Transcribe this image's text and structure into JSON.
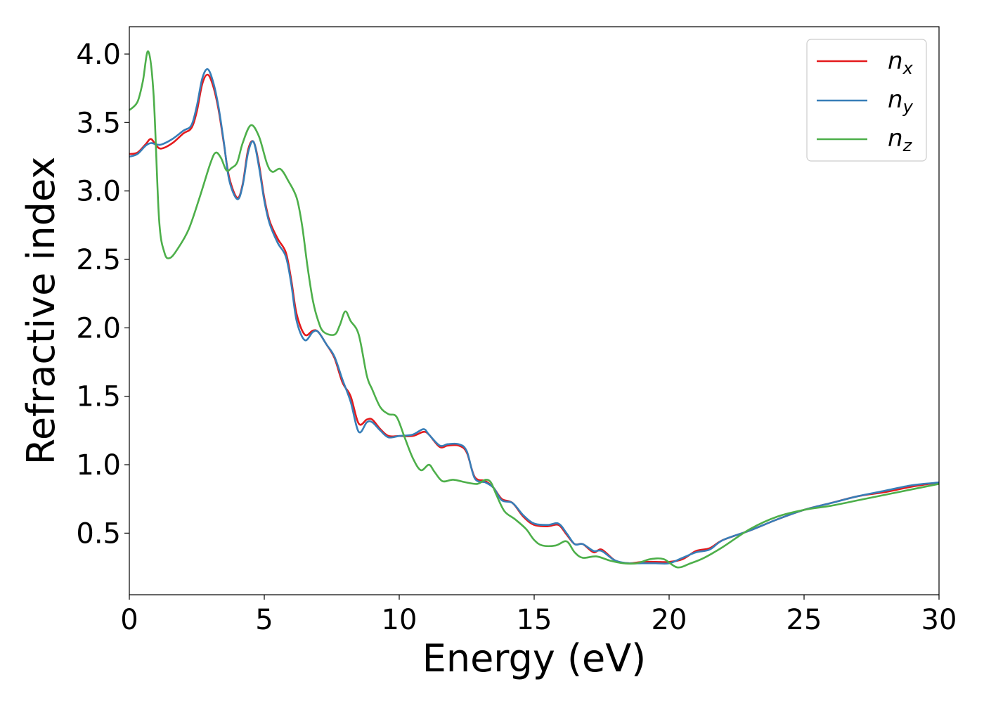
{
  "chart_data": {
    "type": "line",
    "xlabel": "Energy (eV)",
    "ylabel": "Refractive index",
    "xlim": [
      0,
      30
    ],
    "ylim": [
      0.05,
      4.2
    ],
    "xticks": [
      "0",
      "5",
      "10",
      "15",
      "20",
      "25",
      "30"
    ],
    "yticks": [
      "0.5",
      "1.0",
      "1.5",
      "2.0",
      "2.5",
      "3.0",
      "3.5",
      "4.0"
    ],
    "grid": false,
    "legend_position": "top-right",
    "series": [
      {
        "name": "n",
        "subscript": "x",
        "color": "#e41a1c",
        "points": [
          [
            0,
            3.27
          ],
          [
            0.3,
            3.28
          ],
          [
            0.6,
            3.34
          ],
          [
            0.8,
            3.38
          ],
          [
            1.0,
            3.33
          ],
          [
            1.2,
            3.31
          ],
          [
            1.6,
            3.35
          ],
          [
            2.0,
            3.42
          ],
          [
            2.3,
            3.46
          ],
          [
            2.5,
            3.58
          ],
          [
            2.7,
            3.78
          ],
          [
            2.9,
            3.85
          ],
          [
            3.1,
            3.77
          ],
          [
            3.3,
            3.6
          ],
          [
            3.5,
            3.35
          ],
          [
            3.7,
            3.1
          ],
          [
            4.0,
            2.95
          ],
          [
            4.2,
            3.05
          ],
          [
            4.4,
            3.3
          ],
          [
            4.6,
            3.36
          ],
          [
            4.8,
            3.2
          ],
          [
            5.0,
            2.95
          ],
          [
            5.2,
            2.78
          ],
          [
            5.5,
            2.65
          ],
          [
            5.8,
            2.55
          ],
          [
            6.0,
            2.35
          ],
          [
            6.2,
            2.1
          ],
          [
            6.5,
            1.95
          ],
          [
            6.8,
            1.98
          ],
          [
            7.0,
            1.97
          ],
          [
            7.3,
            1.88
          ],
          [
            7.6,
            1.78
          ],
          [
            7.9,
            1.6
          ],
          [
            8.2,
            1.5
          ],
          [
            8.5,
            1.3
          ],
          [
            8.8,
            1.33
          ],
          [
            9.0,
            1.33
          ],
          [
            9.3,
            1.26
          ],
          [
            9.6,
            1.21
          ],
          [
            10.0,
            1.21
          ],
          [
            10.5,
            1.21
          ],
          [
            10.9,
            1.24
          ],
          [
            11.1,
            1.22
          ],
          [
            11.5,
            1.13
          ],
          [
            11.8,
            1.14
          ],
          [
            12.2,
            1.14
          ],
          [
            12.5,
            1.09
          ],
          [
            12.8,
            0.91
          ],
          [
            13.2,
            0.88
          ],
          [
            13.5,
            0.83
          ],
          [
            13.8,
            0.75
          ],
          [
            14.2,
            0.72
          ],
          [
            14.6,
            0.62
          ],
          [
            15.0,
            0.56
          ],
          [
            15.5,
            0.55
          ],
          [
            15.9,
            0.56
          ],
          [
            16.2,
            0.49
          ],
          [
            16.5,
            0.42
          ],
          [
            16.8,
            0.42
          ],
          [
            17.2,
            0.36
          ],
          [
            17.5,
            0.38
          ],
          [
            18.0,
            0.3
          ],
          [
            18.5,
            0.28
          ],
          [
            19.0,
            0.29
          ],
          [
            19.5,
            0.29
          ],
          [
            20.0,
            0.29
          ],
          [
            20.5,
            0.31
          ],
          [
            21.0,
            0.37
          ],
          [
            21.5,
            0.39
          ],
          [
            22.0,
            0.45
          ],
          [
            23.0,
            0.52
          ],
          [
            24.0,
            0.6
          ],
          [
            25.0,
            0.67
          ],
          [
            26.0,
            0.72
          ],
          [
            27.0,
            0.77
          ],
          [
            28.0,
            0.8
          ],
          [
            29.0,
            0.84
          ],
          [
            30.0,
            0.87
          ]
        ]
      },
      {
        "name": "n",
        "subscript": "y",
        "color": "#377eb8",
        "points": [
          [
            0,
            3.25
          ],
          [
            0.3,
            3.27
          ],
          [
            0.6,
            3.33
          ],
          [
            0.8,
            3.35
          ],
          [
            1.0,
            3.34
          ],
          [
            1.2,
            3.34
          ],
          [
            1.6,
            3.38
          ],
          [
            2.0,
            3.44
          ],
          [
            2.3,
            3.48
          ],
          [
            2.5,
            3.62
          ],
          [
            2.7,
            3.82
          ],
          [
            2.9,
            3.89
          ],
          [
            3.1,
            3.8
          ],
          [
            3.3,
            3.62
          ],
          [
            3.5,
            3.36
          ],
          [
            3.7,
            3.08
          ],
          [
            4.0,
            2.94
          ],
          [
            4.2,
            3.04
          ],
          [
            4.4,
            3.28
          ],
          [
            4.6,
            3.36
          ],
          [
            4.8,
            3.18
          ],
          [
            5.0,
            2.93
          ],
          [
            5.2,
            2.76
          ],
          [
            5.5,
            2.62
          ],
          [
            5.8,
            2.52
          ],
          [
            6.0,
            2.32
          ],
          [
            6.2,
            2.05
          ],
          [
            6.5,
            1.91
          ],
          [
            6.8,
            1.97
          ],
          [
            7.0,
            1.97
          ],
          [
            7.3,
            1.88
          ],
          [
            7.6,
            1.79
          ],
          [
            7.9,
            1.62
          ],
          [
            8.2,
            1.46
          ],
          [
            8.5,
            1.24
          ],
          [
            8.8,
            1.31
          ],
          [
            9.0,
            1.31
          ],
          [
            9.3,
            1.25
          ],
          [
            9.6,
            1.2
          ],
          [
            10.0,
            1.21
          ],
          [
            10.5,
            1.22
          ],
          [
            10.9,
            1.26
          ],
          [
            11.1,
            1.22
          ],
          [
            11.5,
            1.14
          ],
          [
            11.8,
            1.15
          ],
          [
            12.2,
            1.15
          ],
          [
            12.5,
            1.1
          ],
          [
            12.8,
            0.9
          ],
          [
            13.2,
            0.87
          ],
          [
            13.5,
            0.83
          ],
          [
            13.8,
            0.74
          ],
          [
            14.2,
            0.72
          ],
          [
            14.6,
            0.63
          ],
          [
            15.0,
            0.57
          ],
          [
            15.5,
            0.56
          ],
          [
            15.9,
            0.57
          ],
          [
            16.2,
            0.5
          ],
          [
            16.5,
            0.42
          ],
          [
            16.8,
            0.42
          ],
          [
            17.2,
            0.37
          ],
          [
            17.5,
            0.37
          ],
          [
            18.0,
            0.3
          ],
          [
            18.5,
            0.28
          ],
          [
            19.0,
            0.28
          ],
          [
            19.5,
            0.28
          ],
          [
            20.0,
            0.28
          ],
          [
            20.5,
            0.32
          ],
          [
            21.0,
            0.36
          ],
          [
            21.5,
            0.38
          ],
          [
            22.0,
            0.45
          ],
          [
            23.0,
            0.52
          ],
          [
            24.0,
            0.6
          ],
          [
            25.0,
            0.67
          ],
          [
            26.0,
            0.72
          ],
          [
            27.0,
            0.77
          ],
          [
            28.0,
            0.81
          ],
          [
            29.0,
            0.85
          ],
          [
            30.0,
            0.87
          ]
        ]
      },
      {
        "name": "n",
        "subscript": "z",
        "color": "#4daf4a",
        "points": [
          [
            0,
            3.59
          ],
          [
            0.3,
            3.65
          ],
          [
            0.5,
            3.8
          ],
          [
            0.7,
            4.02
          ],
          [
            0.9,
            3.7
          ],
          [
            1.1,
            2.8
          ],
          [
            1.3,
            2.55
          ],
          [
            1.5,
            2.51
          ],
          [
            1.8,
            2.58
          ],
          [
            2.2,
            2.72
          ],
          [
            2.6,
            2.95
          ],
          [
            3.0,
            3.2
          ],
          [
            3.2,
            3.28
          ],
          [
            3.4,
            3.24
          ],
          [
            3.6,
            3.15
          ],
          [
            3.8,
            3.17
          ],
          [
            4.0,
            3.21
          ],
          [
            4.2,
            3.35
          ],
          [
            4.5,
            3.48
          ],
          [
            4.8,
            3.4
          ],
          [
            5.1,
            3.2
          ],
          [
            5.3,
            3.14
          ],
          [
            5.6,
            3.16
          ],
          [
            5.9,
            3.07
          ],
          [
            6.2,
            2.95
          ],
          [
            6.4,
            2.75
          ],
          [
            6.6,
            2.45
          ],
          [
            6.8,
            2.2
          ],
          [
            7.0,
            2.05
          ],
          [
            7.2,
            1.97
          ],
          [
            7.6,
            1.95
          ],
          [
            7.8,
            2.02
          ],
          [
            8.0,
            2.12
          ],
          [
            8.2,
            2.05
          ],
          [
            8.5,
            1.95
          ],
          [
            8.8,
            1.65
          ],
          [
            9.0,
            1.55
          ],
          [
            9.3,
            1.42
          ],
          [
            9.6,
            1.37
          ],
          [
            9.9,
            1.35
          ],
          [
            10.2,
            1.2
          ],
          [
            10.5,
            1.05
          ],
          [
            10.8,
            0.96
          ],
          [
            11.1,
            1.0
          ],
          [
            11.3,
            0.95
          ],
          [
            11.6,
            0.88
          ],
          [
            12.0,
            0.89
          ],
          [
            12.5,
            0.87
          ],
          [
            12.9,
            0.86
          ],
          [
            13.2,
            0.89
          ],
          [
            13.4,
            0.87
          ],
          [
            13.6,
            0.78
          ],
          [
            13.9,
            0.66
          ],
          [
            14.3,
            0.6
          ],
          [
            14.7,
            0.53
          ],
          [
            15.0,
            0.45
          ],
          [
            15.3,
            0.41
          ],
          [
            15.8,
            0.41
          ],
          [
            16.2,
            0.44
          ],
          [
            16.5,
            0.36
          ],
          [
            16.8,
            0.32
          ],
          [
            17.3,
            0.33
          ],
          [
            17.8,
            0.3
          ],
          [
            18.3,
            0.28
          ],
          [
            18.8,
            0.28
          ],
          [
            19.3,
            0.31
          ],
          [
            19.8,
            0.31
          ],
          [
            20.3,
            0.25
          ],
          [
            20.8,
            0.28
          ],
          [
            21.3,
            0.32
          ],
          [
            22.0,
            0.4
          ],
          [
            23.0,
            0.53
          ],
          [
            24.0,
            0.62
          ],
          [
            25.0,
            0.67
          ],
          [
            26.0,
            0.7
          ],
          [
            27.0,
            0.74
          ],
          [
            28.0,
            0.78
          ],
          [
            29.0,
            0.82
          ],
          [
            30.0,
            0.86
          ]
        ]
      }
    ]
  }
}
